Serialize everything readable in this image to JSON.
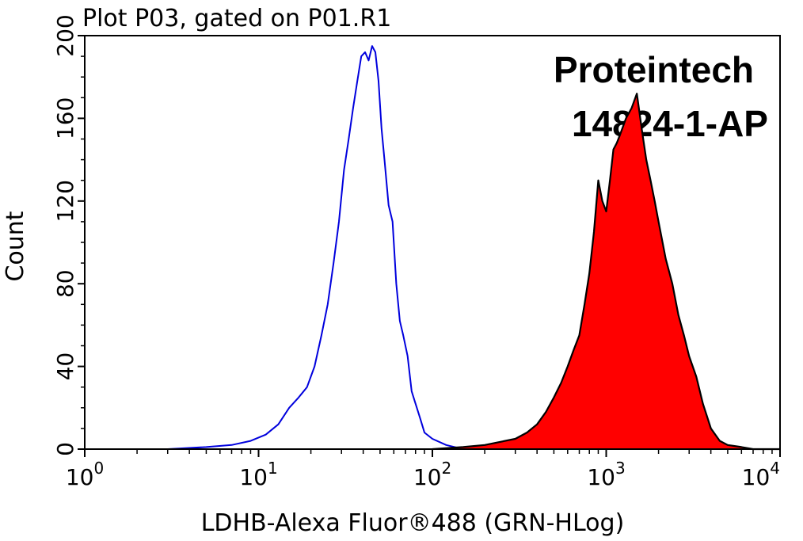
{
  "chart_data": {
    "type": "area",
    "title": "Plot P03, gated on P01.R1",
    "xlabel": "LDHB-Alexa Fluor®488 (GRN-HLog)",
    "ylabel": "Count",
    "x_scale": "log",
    "xlim": [
      1,
      10000
    ],
    "ylim": [
      0,
      200
    ],
    "x_ticks": [
      {
        "value": 1,
        "base": "10",
        "exp": "0"
      },
      {
        "value": 10,
        "base": "10",
        "exp": "1"
      },
      {
        "value": 100,
        "base": "10",
        "exp": "2"
      },
      {
        "value": 1000,
        "base": "10",
        "exp": "3"
      },
      {
        "value": 10000,
        "base": "10",
        "exp": "4"
      }
    ],
    "y_ticks": [
      "0",
      "40",
      "80",
      "120",
      "160",
      "200"
    ],
    "watermark": [
      "Proteintech",
      "14824-1-AP"
    ],
    "series": [
      {
        "style": "outline",
        "color": "#0000dd",
        "x": [
          1,
          1.5,
          2,
          3,
          5,
          7,
          9,
          11,
          13,
          15,
          17,
          19,
          21,
          23,
          25,
          27,
          29,
          31,
          33,
          35,
          37,
          39,
          41,
          43,
          45,
          47,
          49,
          51,
          53,
          56,
          59,
          62,
          65,
          68,
          72,
          76,
          80,
          85,
          90,
          100,
          120,
          150,
          200,
          300,
          500,
          1000,
          3000,
          10000
        ],
        "y": [
          0,
          0,
          0,
          0,
          1,
          2,
          4,
          7,
          12,
          20,
          25,
          30,
          40,
          55,
          70,
          90,
          110,
          135,
          150,
          165,
          178,
          190,
          192,
          188,
          195,
          192,
          178,
          155,
          140,
          118,
          110,
          80,
          62,
          55,
          45,
          28,
          22,
          15,
          8,
          5,
          2,
          0,
          0,
          0,
          0,
          0,
          0,
          0
        ]
      },
      {
        "style": "filled",
        "color": "#ff0000",
        "x": [
          100,
          150,
          200,
          300,
          350,
          400,
          450,
          500,
          550,
          600,
          650,
          700,
          750,
          800,
          850,
          900,
          950,
          1000,
          1050,
          1100,
          1150,
          1200,
          1300,
          1400,
          1500,
          1600,
          1700,
          1800,
          1900,
          2000,
          2200,
          2400,
          2600,
          2800,
          3000,
          3300,
          3600,
          4000,
          4500,
          5000,
          6000,
          7000,
          10000
        ],
        "y": [
          0,
          1,
          2,
          5,
          8,
          12,
          18,
          25,
          32,
          40,
          48,
          55,
          70,
          85,
          105,
          130,
          120,
          115,
          130,
          145,
          148,
          152,
          160,
          165,
          172,
          155,
          140,
          130,
          120,
          110,
          92,
          80,
          65,
          55,
          45,
          35,
          22,
          10,
          4,
          2,
          1,
          0,
          0
        ]
      }
    ]
  }
}
